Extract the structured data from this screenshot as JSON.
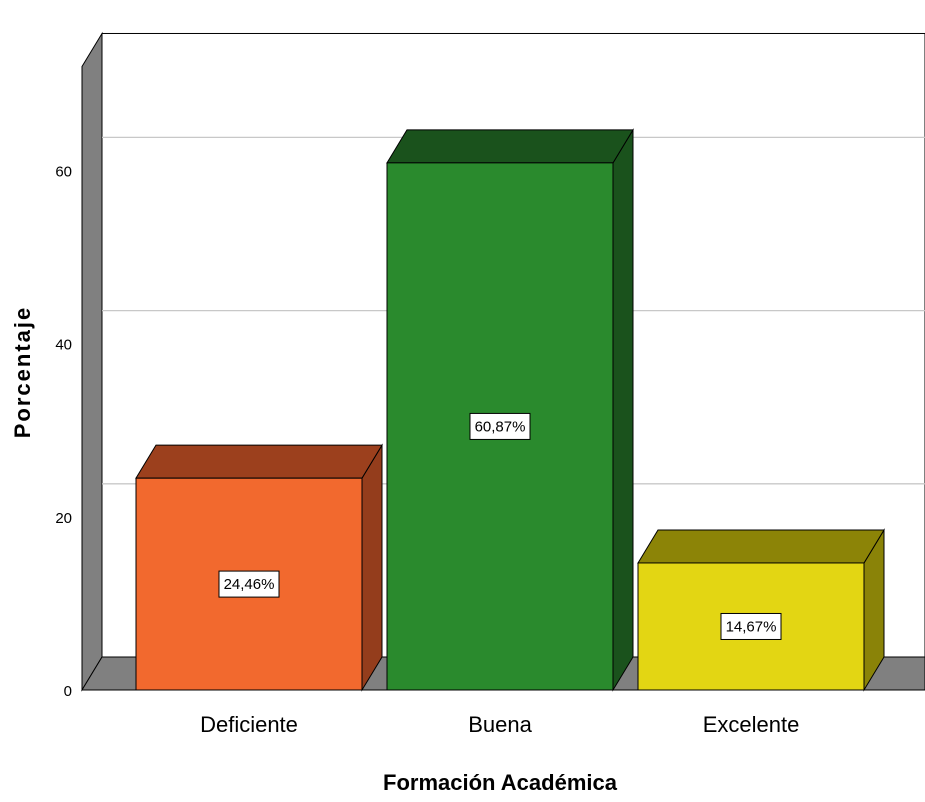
{
  "chart_data": {
    "type": "bar",
    "style": "3d",
    "categories": [
      "Deficiente",
      "Buena",
      "Excelente"
    ],
    "values": [
      24.46,
      60.87,
      14.67
    ],
    "data_labels": [
      "24,46%",
      "60,87%",
      "14,67%"
    ],
    "xlabel": "Formación Académica",
    "ylabel": "Porcentaje",
    "yticks": [
      0,
      20,
      40,
      60
    ],
    "ylim": [
      0,
      72
    ],
    "grid": true,
    "legend": "none",
    "colors": {
      "front": [
        "#f2692e",
        "#2a8a2d",
        "#e3d613"
      ],
      "top": [
        "#9c401d",
        "#1a521c",
        "#8c8407"
      ],
      "side": [
        "#943d1c",
        "#1a521c",
        "#8a8308"
      ],
      "wall": "#808080",
      "grid": "#c8c8c8"
    }
  }
}
